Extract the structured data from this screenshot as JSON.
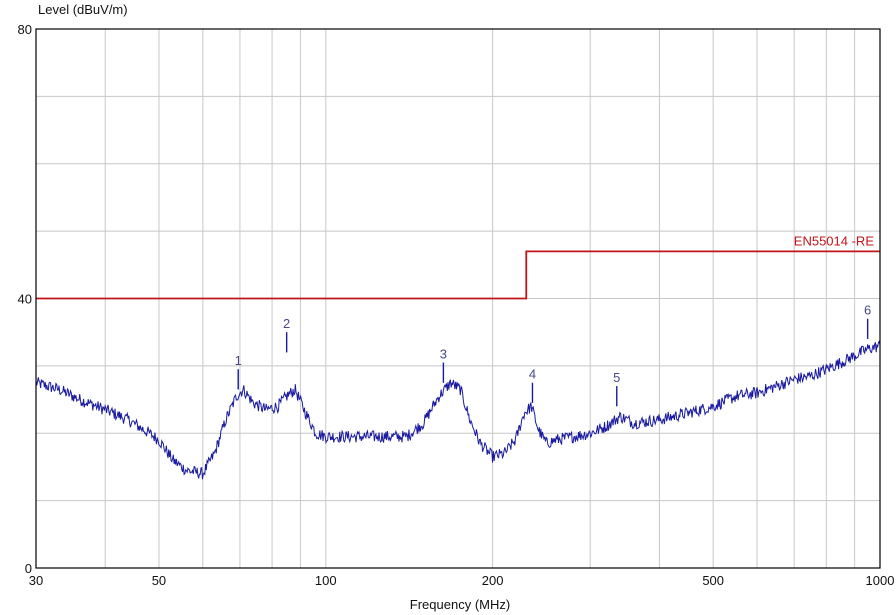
{
  "chart_data": {
    "type": "line",
    "title": "",
    "ylabel": "Level (dBuV/m)",
    "xlabel": "Frequency (MHz)",
    "x_scale": "log",
    "xlim": [
      30,
      1000
    ],
    "ylim": [
      0,
      80
    ],
    "grid": true,
    "x_tick_labels": [
      "30",
      "50",
      "100",
      "200",
      "500",
      "1000"
    ],
    "x_tick_values": [
      30,
      50,
      100,
      200,
      500,
      1000
    ],
    "y_tick_labels": [
      "0",
      "40",
      "80"
    ],
    "y_tick_values": [
      0,
      40,
      80
    ],
    "colors": {
      "trace": "#1a1aa0",
      "limit": "#c0141a",
      "grid": "#c8c8c8",
      "frame": "#000000",
      "marker_text": "#4a4a8a"
    },
    "limit_line": {
      "label": "EN55014 -RE",
      "segments": [
        {
          "x": [
            30,
            230
          ],
          "y": 40
        },
        {
          "x": [
            230,
            1000
          ],
          "y": 47
        }
      ],
      "step_at": 230
    },
    "series": [
      {
        "x": [
          30,
          33,
          36,
          40,
          44,
          48,
          50,
          53,
          56,
          60,
          63,
          66,
          69,
          71,
          74,
          78,
          82,
          85,
          88,
          92,
          96,
          100,
          110,
          120,
          130,
          140,
          150,
          160,
          168,
          175,
          182,
          190,
          200,
          210,
          220,
          228,
          235,
          242,
          250,
          260,
          280,
          300,
          320,
          340,
          360,
          400,
          450,
          500,
          550,
          600,
          650,
          700,
          750,
          800,
          850,
          900,
          950,
          1000
        ],
        "y": [
          27.5,
          26.5,
          25,
          23.5,
          22,
          20,
          19,
          16,
          14.5,
          14,
          17,
          22,
          25.5,
          26.5,
          24.5,
          23.5,
          24,
          25.5,
          26.5,
          23,
          20,
          19.5,
          19.5,
          19.5,
          19.5,
          19.5,
          21.5,
          25.5,
          27.5,
          26.5,
          22,
          18.5,
          16.5,
          17,
          19,
          23,
          24,
          20.5,
          18.5,
          19,
          19.5,
          20,
          21,
          22.5,
          21.5,
          22,
          23,
          24,
          25.5,
          26,
          27,
          28,
          28.5,
          29.5,
          30.5,
          31.5,
          32.5,
          33
        ]
      }
    ],
    "markers": [
      {
        "label": "1",
        "x": 69.5,
        "y": 26.5
      },
      {
        "label": "2",
        "x": 85,
        "y": 32
      },
      {
        "label": "3",
        "x": 163,
        "y": 27.5
      },
      {
        "label": "4",
        "x": 236,
        "y": 24.5
      },
      {
        "label": "5",
        "x": 335,
        "y": 24
      },
      {
        "label": "6",
        "x": 950,
        "y": 34
      }
    ]
  }
}
